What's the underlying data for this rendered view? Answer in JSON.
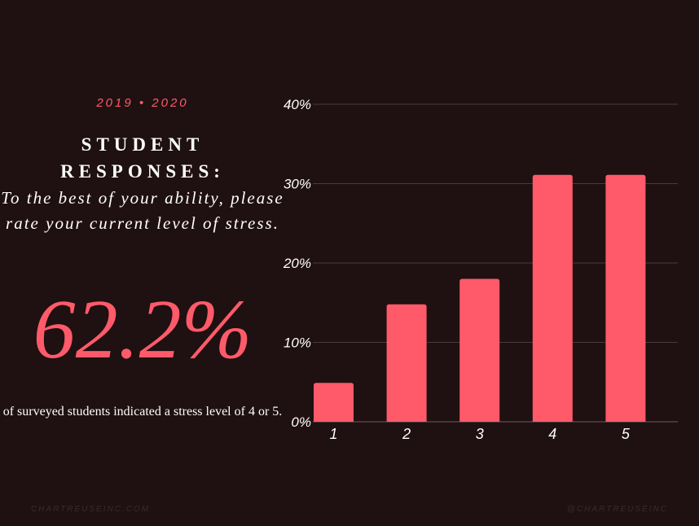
{
  "year_label": "2019 • 2020",
  "heading": "STUDENT RESPONSES:",
  "question": "To the best of your ability, please rate your current level of stress.",
  "big_stat": "62.2%",
  "stat_caption": "of surveyed students indicated a stress level of 4 or 5.",
  "footer_left": "CHARTREUSEINC.COM",
  "footer_right": "@CHARTREUSEINC",
  "colors": {
    "background": "#1f1011",
    "accent": "#ff5a6a",
    "text": "#ffffff",
    "grid": "#4a3a3b"
  },
  "chart_data": {
    "type": "bar",
    "categories": [
      "1",
      "2",
      "3",
      "4",
      "5"
    ],
    "values": [
      4.9,
      14.8,
      18.0,
      31.1,
      31.1
    ],
    "ylim": [
      0,
      40
    ],
    "yticks": [
      "0%",
      "10%",
      "20%",
      "30%",
      "40%"
    ],
    "ytick_values": [
      0,
      10,
      20,
      30,
      40
    ],
    "grid": true
  }
}
